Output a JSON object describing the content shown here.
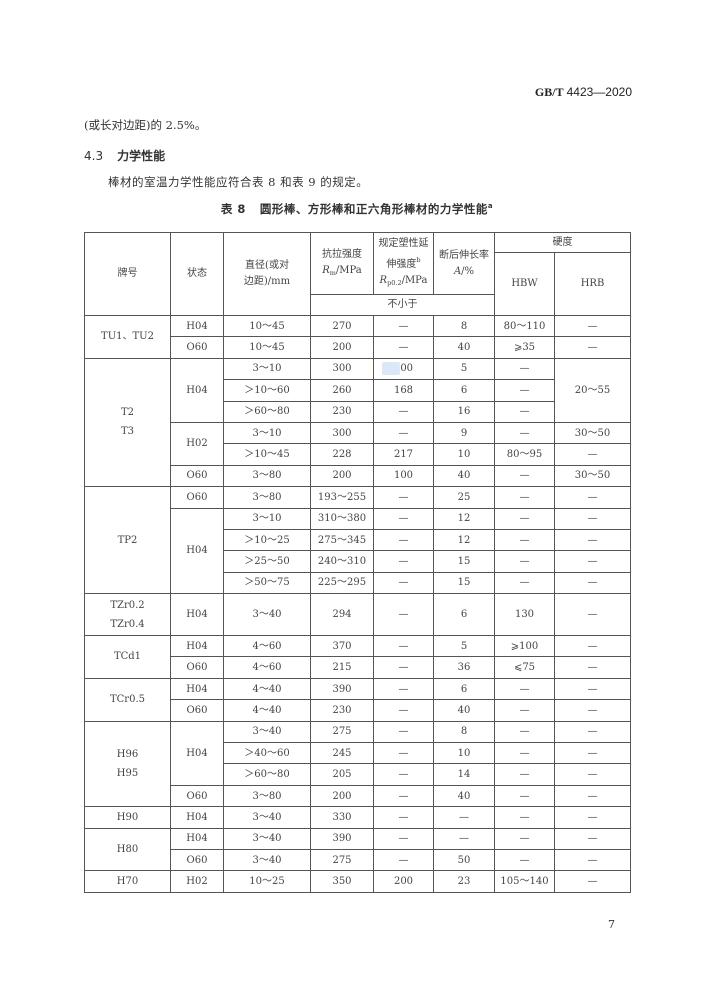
{
  "header": {
    "std_code": "GB/T",
    "std_number": "4423—2020"
  },
  "text": {
    "line1": "(或长对边距)的 2.5%。",
    "section_number": "4.3",
    "section_title": "力学性能",
    "paragraph": "棒材的室温力学性能应符合表 8 和表 9 的规定。"
  },
  "table": {
    "number": "表 8",
    "title": "圆形棒、方形棒和正六角形棒材的力学性能",
    "title_note": "a",
    "headers": {
      "grade": "牌号",
      "state": "状态",
      "diameter": "直径(或对\n边距)/mm",
      "tensile": {
        "label": "抗拉强度",
        "sym": "R",
        "sub": "m",
        "unit": "/MPa"
      },
      "yield": {
        "label": "规定塑性延\n伸强度",
        "note": "b",
        "sym": "R",
        "sub": "p0.2",
        "unit": "/MPa"
      },
      "elongation": {
        "label": "断后伸长率",
        "sym": "A",
        "unit": "/%"
      },
      "hardness": "硬度",
      "hbw": "HBW",
      "hrb": "HRB",
      "min_note": "不小于"
    },
    "rows": [
      [
        {
          "t": "TU1、TU2",
          "rs": 2
        },
        "H04",
        "10～45",
        "270",
        "—",
        "8",
        "80～110",
        "—"
      ],
      [
        "O60",
        "10～45",
        "200",
        "—",
        "40",
        "⩾35",
        "—"
      ],
      [
        {
          "t": "T2\nT3",
          "rs": 6
        },
        {
          "t": "H04",
          "rs": 3
        },
        "3～10",
        "300",
        "200",
        "5",
        "—",
        {
          "t": "20～55",
          "rs": 3
        }
      ],
      [
        "＞10～60",
        "260",
        "168",
        "6",
        "—"
      ],
      [
        "＞60～80",
        "230",
        "—",
        "16",
        "—"
      ],
      [
        {
          "t": "H02",
          "rs": 2
        },
        "3～10",
        "300",
        "—",
        "9",
        "—",
        "30～50"
      ],
      [
        "＞10～45",
        "228",
        "217",
        "10",
        "80～95",
        "—"
      ],
      [
        "O60",
        "3～80",
        "200",
        "100",
        "40",
        "—",
        "30～50"
      ],
      [
        {
          "t": "TP2",
          "rs": 5
        },
        "O60",
        "3～80",
        "193～255",
        "—",
        "25",
        "—",
        "—"
      ],
      [
        {
          "t": "H04",
          "rs": 4
        },
        "3～10",
        "310～380",
        "—",
        "12",
        "—",
        "—"
      ],
      [
        "＞10～25",
        "275～345",
        "—",
        "12",
        "—",
        "—"
      ],
      [
        "＞25～50",
        "240～310",
        "—",
        "15",
        "—",
        "—"
      ],
      [
        "＞50～75",
        "225～295",
        "—",
        "15",
        "—",
        "—"
      ],
      [
        "TZr0.2\nTZr0.4",
        "H04",
        "3～40",
        "294",
        "—",
        "6",
        "130",
        "—"
      ],
      [
        {
          "t": "TCd1",
          "rs": 2
        },
        "H04",
        "4～60",
        "370",
        "—",
        "5",
        "⩾100",
        "—"
      ],
      [
        "O60",
        "4～60",
        "215",
        "—",
        "36",
        "⩽75",
        "—"
      ],
      [
        {
          "t": "TCr0.5",
          "rs": 2
        },
        "H04",
        "4～40",
        "390",
        "—",
        "6",
        "—",
        "—"
      ],
      [
        "O60",
        "4～40",
        "230",
        "—",
        "40",
        "—",
        "—"
      ],
      [
        {
          "t": "H96\nH95",
          "rs": 4
        },
        {
          "t": "H04",
          "rs": 3
        },
        "3～40",
        "275",
        "—",
        "8",
        "—",
        "—"
      ],
      [
        "＞40～60",
        "245",
        "—",
        "10",
        "—",
        "—"
      ],
      [
        "＞60～80",
        "205",
        "—",
        "14",
        "—",
        "—"
      ],
      [
        "O60",
        "3～80",
        "200",
        "—",
        "40",
        "—",
        "—"
      ],
      [
        "H90",
        "H04",
        "3～40",
        "330",
        "—",
        "—",
        "—",
        "—"
      ],
      [
        {
          "t": "H80",
          "rs": 2
        },
        "H04",
        "3～40",
        "390",
        "—",
        "—",
        "—",
        "—"
      ],
      [
        "O60",
        "3～40",
        "275",
        "—",
        "50",
        "—",
        "—"
      ],
      [
        "H70",
        "H02",
        "10～25",
        "350",
        "200",
        "23",
        "105～140",
        "—"
      ]
    ]
  },
  "footer": {
    "page_number": "7"
  }
}
